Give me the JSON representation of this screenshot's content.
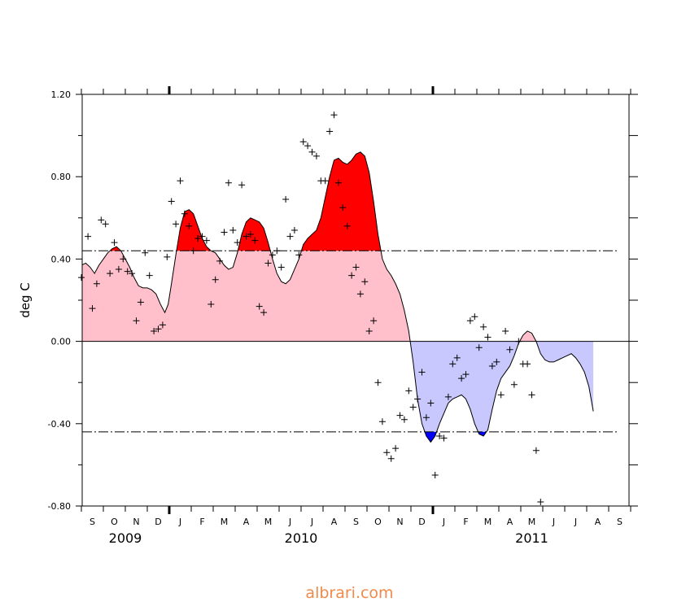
{
  "chart_data": {
    "type": "area",
    "ylabel": "deg C",
    "ylim": [
      -0.8,
      1.2
    ],
    "yticks": [
      "1.20",
      "0.80",
      "0.40",
      "0.00",
      "-0.40",
      "-0.80"
    ],
    "months": [
      "S",
      "O",
      "N",
      "D",
      "J",
      "F",
      "M",
      "A",
      "M",
      "J",
      "J",
      "A",
      "S",
      "O",
      "N",
      "D",
      "J",
      "F",
      "M",
      "A",
      "M",
      "J",
      "J",
      "A",
      "S"
    ],
    "years": [
      {
        "label": "2009",
        "month_index": 1.5
      },
      {
        "label": "2010",
        "month_index": 9.5
      },
      {
        "label": "2011",
        "month_index": 20
      }
    ],
    "thresholds": [
      0.44,
      -0.44
    ],
    "colors": {
      "pos_fill": "#ffc0cb",
      "pos_exceed": "#ff0000",
      "neg_fill": "#c8c8ff",
      "neg_exceed": "#0000ff"
    },
    "smoothed": [
      [
        -0.5,
        0.37
      ],
      [
        -0.3,
        0.38
      ],
      [
        -0.1,
        0.36
      ],
      [
        0.1,
        0.33
      ],
      [
        0.3,
        0.37
      ],
      [
        0.5,
        0.4
      ],
      [
        0.7,
        0.43
      ],
      [
        0.9,
        0.45
      ],
      [
        1.1,
        0.46
      ],
      [
        1.3,
        0.44
      ],
      [
        1.5,
        0.4
      ],
      [
        1.7,
        0.36
      ],
      [
        1.9,
        0.31
      ],
      [
        2.1,
        0.27
      ],
      [
        2.3,
        0.26
      ],
      [
        2.5,
        0.26
      ],
      [
        2.7,
        0.25
      ],
      [
        2.9,
        0.23
      ],
      [
        3.1,
        0.18
      ],
      [
        3.3,
        0.14
      ],
      [
        3.45,
        0.18
      ],
      [
        3.6,
        0.28
      ],
      [
        3.8,
        0.42
      ],
      [
        4.0,
        0.55
      ],
      [
        4.2,
        0.63
      ],
      [
        4.4,
        0.64
      ],
      [
        4.6,
        0.62
      ],
      [
        4.8,
        0.56
      ],
      [
        5.0,
        0.5
      ],
      [
        5.2,
        0.46
      ],
      [
        5.4,
        0.44
      ],
      [
        5.6,
        0.43
      ],
      [
        5.8,
        0.4
      ],
      [
        6.0,
        0.37
      ],
      [
        6.2,
        0.35
      ],
      [
        6.4,
        0.36
      ],
      [
        6.6,
        0.43
      ],
      [
        6.8,
        0.52
      ],
      [
        7.0,
        0.58
      ],
      [
        7.2,
        0.6
      ],
      [
        7.4,
        0.59
      ],
      [
        7.6,
        0.58
      ],
      [
        7.8,
        0.55
      ],
      [
        8.0,
        0.48
      ],
      [
        8.2,
        0.4
      ],
      [
        8.4,
        0.33
      ],
      [
        8.6,
        0.29
      ],
      [
        8.8,
        0.28
      ],
      [
        9.0,
        0.3
      ],
      [
        9.2,
        0.35
      ],
      [
        9.4,
        0.4
      ],
      [
        9.6,
        0.47
      ],
      [
        9.8,
        0.5
      ],
      [
        10.0,
        0.52
      ],
      [
        10.2,
        0.54
      ],
      [
        10.4,
        0.6
      ],
      [
        10.6,
        0.7
      ],
      [
        10.8,
        0.8
      ],
      [
        11.0,
        0.88
      ],
      [
        11.2,
        0.89
      ],
      [
        11.4,
        0.87
      ],
      [
        11.6,
        0.86
      ],
      [
        11.8,
        0.88
      ],
      [
        12.0,
        0.91
      ],
      [
        12.2,
        0.92
      ],
      [
        12.4,
        0.9
      ],
      [
        12.6,
        0.82
      ],
      [
        12.8,
        0.68
      ],
      [
        13.0,
        0.52
      ],
      [
        13.2,
        0.4
      ],
      [
        13.4,
        0.35
      ],
      [
        13.6,
        0.32
      ],
      [
        13.8,
        0.28
      ],
      [
        14.0,
        0.23
      ],
      [
        14.2,
        0.15
      ],
      [
        14.4,
        0.05
      ],
      [
        14.6,
        -0.1
      ],
      [
        14.8,
        -0.28
      ],
      [
        15.0,
        -0.4
      ],
      [
        15.2,
        -0.46
      ],
      [
        15.4,
        -0.49
      ],
      [
        15.6,
        -0.46
      ],
      [
        15.8,
        -0.4
      ],
      [
        16.0,
        -0.35
      ],
      [
        16.2,
        -0.3
      ],
      [
        16.4,
        -0.28
      ],
      [
        16.6,
        -0.27
      ],
      [
        16.8,
        -0.26
      ],
      [
        17.0,
        -0.28
      ],
      [
        17.2,
        -0.33
      ],
      [
        17.4,
        -0.4
      ],
      [
        17.6,
        -0.45
      ],
      [
        17.8,
        -0.46
      ],
      [
        18.0,
        -0.43
      ],
      [
        18.2,
        -0.33
      ],
      [
        18.4,
        -0.24
      ],
      [
        18.6,
        -0.18
      ],
      [
        18.8,
        -0.15
      ],
      [
        19.0,
        -0.12
      ],
      [
        19.2,
        -0.07
      ],
      [
        19.4,
        -0.01
      ],
      [
        19.6,
        0.03
      ],
      [
        19.8,
        0.05
      ],
      [
        20.0,
        0.04
      ],
      [
        20.2,
        0.0
      ],
      [
        20.4,
        -0.06
      ],
      [
        20.6,
        -0.09
      ],
      [
        20.8,
        -0.1
      ],
      [
        21.0,
        -0.1
      ],
      [
        21.2,
        -0.09
      ],
      [
        21.4,
        -0.08
      ],
      [
        21.6,
        -0.07
      ],
      [
        21.8,
        -0.06
      ],
      [
        22.0,
        -0.08
      ],
      [
        22.2,
        -0.11
      ],
      [
        22.4,
        -0.15
      ],
      [
        22.6,
        -0.22
      ],
      [
        22.8,
        -0.34
      ]
    ],
    "points": [
      [
        -0.5,
        0.31
      ],
      [
        -0.2,
        0.51
      ],
      [
        0.0,
        0.16
      ],
      [
        0.2,
        0.28
      ],
      [
        0.4,
        0.59
      ],
      [
        0.6,
        0.57
      ],
      [
        0.8,
        0.33
      ],
      [
        1.0,
        0.48
      ],
      [
        1.2,
        0.35
      ],
      [
        1.4,
        0.4
      ],
      [
        1.6,
        0.34
      ],
      [
        1.8,
        0.33
      ],
      [
        2.0,
        0.1
      ],
      [
        2.2,
        0.19
      ],
      [
        2.4,
        0.43
      ],
      [
        2.6,
        0.32
      ],
      [
        2.8,
        0.05
      ],
      [
        3.0,
        0.06
      ],
      [
        3.2,
        0.08
      ],
      [
        3.4,
        0.41
      ],
      [
        3.6,
        0.68
      ],
      [
        3.8,
        0.57
      ],
      [
        4.0,
        0.78
      ],
      [
        4.2,
        0.62
      ],
      [
        4.4,
        0.56
      ],
      [
        4.6,
        0.44
      ],
      [
        4.8,
        0.5
      ],
      [
        5.0,
        0.51
      ],
      [
        5.2,
        0.49
      ],
      [
        5.4,
        0.18
      ],
      [
        5.6,
        0.3
      ],
      [
        5.8,
        0.39
      ],
      [
        6.0,
        0.53
      ],
      [
        6.2,
        0.77
      ],
      [
        6.4,
        0.54
      ],
      [
        6.6,
        0.48
      ],
      [
        6.8,
        0.76
      ],
      [
        7.0,
        0.51
      ],
      [
        7.2,
        0.52
      ],
      [
        7.4,
        0.49
      ],
      [
        7.6,
        0.17
      ],
      [
        7.8,
        0.14
      ],
      [
        8.0,
        0.38
      ],
      [
        8.2,
        0.42
      ],
      [
        8.4,
        0.44
      ],
      [
        8.6,
        0.36
      ],
      [
        8.8,
        0.69
      ],
      [
        9.0,
        0.51
      ],
      [
        9.2,
        0.54
      ],
      [
        9.4,
        0.42
      ],
      [
        9.6,
        0.97
      ],
      [
        9.8,
        0.95
      ],
      [
        10.0,
        0.92
      ],
      [
        10.2,
        0.9
      ],
      [
        10.4,
        0.78
      ],
      [
        10.6,
        0.78
      ],
      [
        10.8,
        1.02
      ],
      [
        11.0,
        1.1
      ],
      [
        11.2,
        0.77
      ],
      [
        11.4,
        0.65
      ],
      [
        11.6,
        0.56
      ],
      [
        11.8,
        0.32
      ],
      [
        12.0,
        0.36
      ],
      [
        12.2,
        0.23
      ],
      [
        12.4,
        0.29
      ],
      [
        12.6,
        0.05
      ],
      [
        12.8,
        0.1
      ],
      [
        13.0,
        -0.2
      ],
      [
        13.2,
        -0.39
      ],
      [
        13.4,
        -0.54
      ],
      [
        13.6,
        -0.57
      ],
      [
        13.8,
        -0.52
      ],
      [
        14.0,
        -0.36
      ],
      [
        14.2,
        -0.38
      ],
      [
        14.4,
        -0.24
      ],
      [
        14.6,
        -0.32
      ],
      [
        14.8,
        -0.28
      ],
      [
        15.0,
        -0.15
      ],
      [
        15.2,
        -0.37
      ],
      [
        15.4,
        -0.3
      ],
      [
        15.6,
        -0.65
      ],
      [
        15.8,
        -0.46
      ],
      [
        16.0,
        -0.47
      ],
      [
        16.2,
        -0.27
      ],
      [
        16.4,
        -0.11
      ],
      [
        16.6,
        -0.08
      ],
      [
        16.8,
        -0.18
      ],
      [
        17.0,
        -0.16
      ],
      [
        17.2,
        0.1
      ],
      [
        17.4,
        0.12
      ],
      [
        17.6,
        -0.03
      ],
      [
        17.8,
        0.07
      ],
      [
        18.0,
        0.02
      ],
      [
        18.2,
        -0.12
      ],
      [
        18.4,
        -0.1
      ],
      [
        18.6,
        -0.26
      ],
      [
        18.8,
        0.05
      ],
      [
        19.0,
        -0.04
      ],
      [
        19.2,
        -0.21
      ],
      [
        19.4,
        0.0
      ],
      [
        19.6,
        -0.11
      ],
      [
        19.8,
        -0.11
      ],
      [
        20.0,
        -0.26
      ],
      [
        20.2,
        -0.53
      ],
      [
        20.4,
        -0.78
      ]
    ]
  },
  "watermark": "albrari.com"
}
